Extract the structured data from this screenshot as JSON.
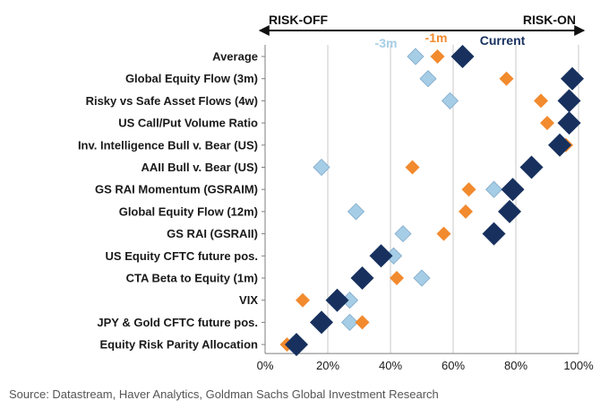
{
  "chart_data": {
    "type": "scatter",
    "title": "",
    "header_left": "RISK-OFF",
    "header_right": "RISK-ON",
    "categories": [
      "Average",
      "Global Equity Flow (3m)",
      "Risky vs Safe Asset Flows (4w)",
      "US Call/Put Volume Ratio",
      "Inv. Intelligence Bull v. Bear (US)",
      "AAII Bull v. Bear (US)",
      "GS RAI Momentum (GSRAIM)",
      "Global Equity Flow (12m)",
      "GS RAI (GSRAII)",
      "US Equity CFTC future pos.",
      "CTA Beta to Equity (1m)",
      "VIX",
      "JPY & Gold CFTC future pos.",
      "Equity Risk Parity Allocation"
    ],
    "series": [
      {
        "name": "-3m",
        "color": "#a6cde6",
        "values": [
          48,
          52,
          59,
          98,
          94,
          18,
          73,
          29,
          44,
          41,
          50,
          27,
          27,
          9
        ]
      },
      {
        "name": "-1m",
        "color": "#f28a2e",
        "values": [
          55,
          77,
          88,
          90,
          96,
          47,
          65,
          64,
          57,
          38,
          42,
          12,
          31,
          7
        ]
      },
      {
        "name": "Current",
        "color": "#17305e",
        "values": [
          63,
          98,
          97,
          97,
          94,
          85,
          79,
          78,
          73,
          37,
          31,
          23,
          18,
          10
        ]
      }
    ],
    "xlim": [
      0,
      100
    ],
    "x_ticks": [
      "0%",
      "20%",
      "40%",
      "60%",
      "80%",
      "100%"
    ],
    "xlabel": "",
    "ylabel": "",
    "grid": "vertical",
    "legend": "top-right"
  },
  "source_note": "Source: Datastream, Haver Analytics, Goldman Sachs Global Investment Research"
}
